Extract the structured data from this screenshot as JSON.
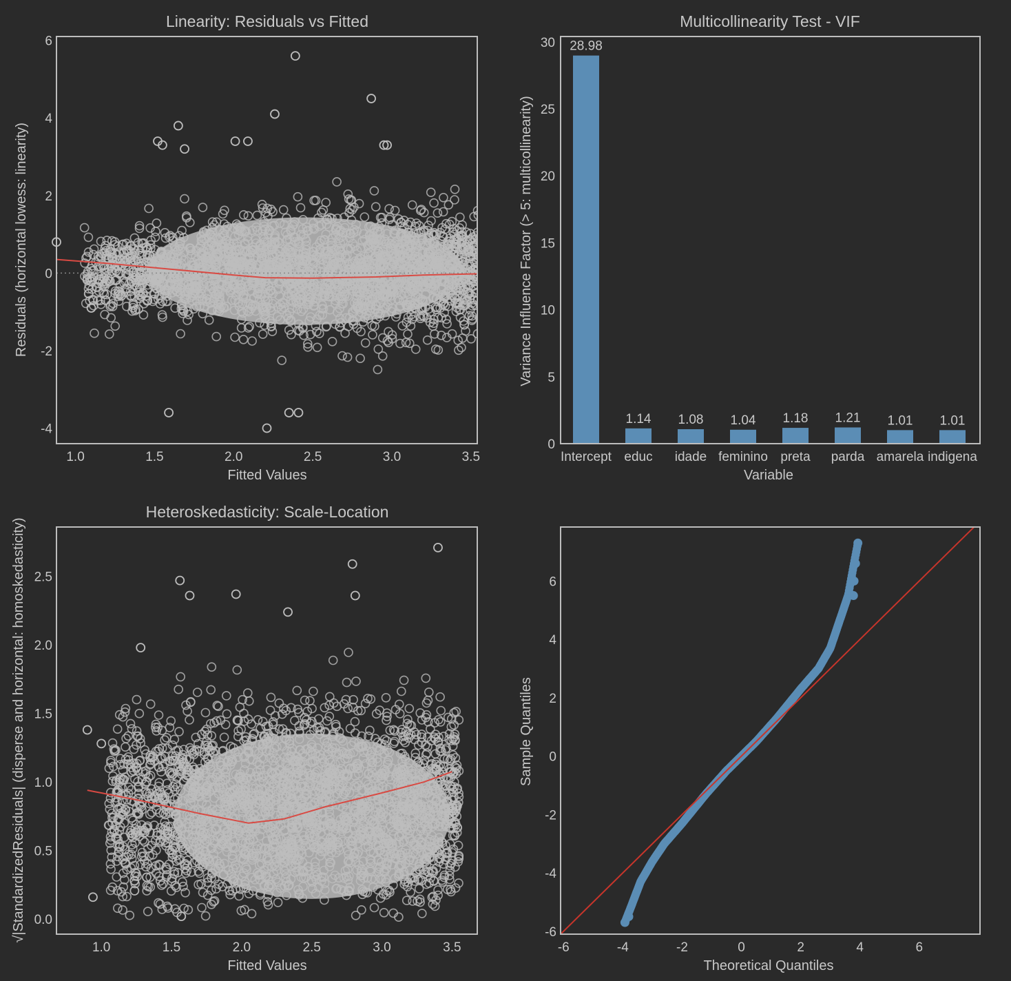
{
  "colors": {
    "background": "#2a2a2a",
    "axes_frame": "#bdbdbd",
    "text": "#c8c8c8",
    "scatter_marker": "#bdbdbd",
    "lowess_line": "#d94a43",
    "bar_fill": "#5b8db5",
    "qq_points": "#5b8db5",
    "qq_reference_line": "#c8352b"
  },
  "chart_data": [
    {
      "id": "linearity",
      "type": "scatter",
      "title": "Linearity: Residuals vs Fitted",
      "xlabel": "Fitted Values",
      "ylabel": "Residuals (horizontal lowess: linearity)",
      "xlim": [
        0.88,
        3.54
      ],
      "ylim": [
        -4.4,
        6.1
      ],
      "xticks": [
        "1.0",
        "1.5",
        "2.0",
        "2.5",
        "3.0",
        "3.5"
      ],
      "yticks": [
        "6",
        "4",
        "2",
        "0",
        "-2",
        "-4"
      ],
      "reference_line": {
        "y": 0,
        "style": "dotted"
      },
      "lowess": {
        "x": [
          0.88,
          1.2,
          1.6,
          2.0,
          2.2,
          2.5,
          2.9,
          3.2,
          3.54
        ],
        "y": [
          0.35,
          0.25,
          0.1,
          -0.05,
          -0.12,
          -0.13,
          -0.1,
          -0.05,
          -0.02
        ]
      },
      "point_cloud": {
        "x_range": [
          0.88,
          3.54
        ],
        "residual_mean": 0,
        "residual_sd": 0.9,
        "marker": "hollow circle"
      },
      "outliers": {
        "x": [
          2.39,
          2.87,
          2.26,
          1.65,
          1.52,
          1.55,
          1.69,
          2.01,
          2.09,
          2.95,
          2.97,
          2.21,
          2.35,
          1.59,
          2.41,
          0.88,
          1.1,
          1.19
        ],
        "y": [
          5.6,
          4.5,
          4.1,
          3.8,
          3.4,
          3.3,
          3.2,
          3.4,
          3.4,
          3.3,
          3.3,
          -4.0,
          -3.6,
          -3.6,
          -3.6,
          0.8,
          -0.9,
          -0.7
        ]
      }
    },
    {
      "id": "vif",
      "type": "bar",
      "title": "Multicollinearity Test - VIF",
      "xlabel": "Variable",
      "ylabel": "Variance Influence Factor (> 5: multicollinearity)",
      "categories": [
        "Intercept",
        "educ",
        "idade",
        "feminino",
        "preta",
        "parda",
        "amarela",
        "indigena"
      ],
      "values": [
        28.98,
        1.14,
        1.08,
        1.04,
        1.18,
        1.21,
        1.01,
        1.01
      ],
      "data_labels": [
        "28.98",
        "1.14",
        "1.08",
        "1.04",
        "1.18",
        "1.21",
        "1.01",
        "1.01"
      ],
      "ylim": [
        0,
        30.4
      ],
      "yticks": [
        "30",
        "25",
        "20",
        "15",
        "10",
        "5",
        "0"
      ]
    },
    {
      "id": "scale_location",
      "type": "scatter",
      "title": "Heteroskedasticity: Scale-Location",
      "xlabel": "Fitted Values",
      "ylabel": "√|StandardizedResiduals| (disperse and horizontal: homoskedasticity)",
      "xlim": [
        0.68,
        3.68
      ],
      "ylim": [
        -0.11,
        2.86
      ],
      "xticks": [
        "1.0",
        "1.5",
        "2.0",
        "2.5",
        "3.0",
        "3.5"
      ],
      "yticks": [
        "2.5",
        "2.0",
        "1.5",
        "1.0",
        "0.5",
        "0.0"
      ],
      "lowess": {
        "x": [
          0.9,
          1.3,
          1.7,
          2.05,
          2.3,
          2.6,
          3.0,
          3.3,
          3.54
        ],
        "y": [
          0.94,
          0.86,
          0.77,
          0.7,
          0.73,
          0.82,
          0.92,
          1.0,
          1.09
        ]
      },
      "point_cloud": {
        "x_range": [
          0.9,
          3.55
        ],
        "marker": "hollow circle"
      },
      "outliers": {
        "x": [
          3.4,
          2.79,
          1.56,
          2.81,
          1.63,
          1.96,
          2.33,
          1.28,
          0.9,
          0.94,
          1.0,
          1.57
        ],
        "y": [
          2.71,
          2.59,
          2.47,
          2.36,
          2.36,
          2.37,
          2.24,
          1.98,
          1.38,
          0.16,
          1.28,
          0.02
        ]
      }
    },
    {
      "id": "qq",
      "type": "scatter",
      "title": "",
      "xlabel": "Theoretical Quantiles",
      "ylabel": "Sample Quantiles",
      "xlim": [
        -6.1,
        8.05
      ],
      "ylim": [
        -6.1,
        7.85
      ],
      "xticks": [
        "-6",
        "-4",
        "-2",
        "0",
        "2",
        "4",
        "6"
      ],
      "yticks": [
        "6",
        "4",
        "2",
        "0",
        "-2",
        "-4",
        "-6"
      ],
      "reference_line": {
        "slope": 1,
        "intercept": 0
      },
      "quantile_curve": {
        "x": [
          -3.93,
          -3.7,
          -3.4,
          -3.0,
          -2.6,
          -2.0,
          -1.2,
          -0.5,
          0.0,
          0.5,
          1.2,
          2.0,
          2.6,
          3.0,
          3.4,
          3.6,
          3.8,
          3.93
        ],
        "y": [
          -5.7,
          -5.1,
          -4.3,
          -3.6,
          -3.0,
          -2.3,
          -1.3,
          -0.5,
          0.0,
          0.5,
          1.3,
          2.3,
          3.0,
          3.7,
          4.9,
          5.5,
          6.6,
          7.3
        ]
      }
    }
  ]
}
